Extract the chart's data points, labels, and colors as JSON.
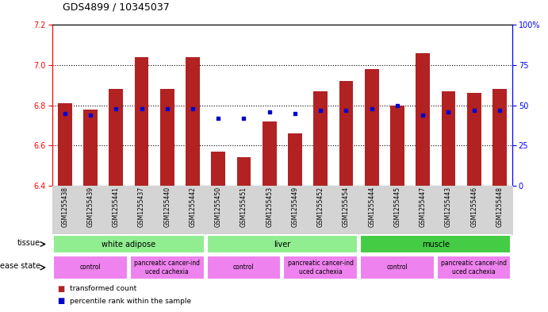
{
  "title": "GDS4899 / 10345037",
  "samples": [
    "GSM1255438",
    "GSM1255439",
    "GSM1255441",
    "GSM1255437",
    "GSM1255440",
    "GSM1255442",
    "GSM1255450",
    "GSM1255451",
    "GSM1255453",
    "GSM1255449",
    "GSM1255452",
    "GSM1255454",
    "GSM1255444",
    "GSM1255445",
    "GSM1255447",
    "GSM1255443",
    "GSM1255446",
    "GSM1255448"
  ],
  "bar_values": [
    6.81,
    6.78,
    6.88,
    7.04,
    6.88,
    7.04,
    6.57,
    6.54,
    6.72,
    6.66,
    6.87,
    6.92,
    6.98,
    6.8,
    7.06,
    6.87,
    6.86,
    6.88
  ],
  "percentile_values": [
    45,
    44,
    48,
    48,
    48,
    48,
    42,
    42,
    46,
    45,
    47,
    47,
    48,
    50,
    44,
    46,
    47,
    47
  ],
  "ylim": [
    6.4,
    7.2
  ],
  "yticks_left": [
    6.4,
    6.6,
    6.8,
    7.0,
    7.2
  ],
  "yticks_right": [
    0,
    25,
    50,
    75,
    100
  ],
  "bar_color": "#B22222",
  "dot_color": "#0000CD",
  "tissue_groups": [
    {
      "label": "white adipose",
      "start": 0,
      "end": 6,
      "color": "#90EE90"
    },
    {
      "label": "liver",
      "start": 6,
      "end": 12,
      "color": "#90EE90"
    },
    {
      "label": "muscle",
      "start": 12,
      "end": 18,
      "color": "#44CC44"
    }
  ],
  "disease_groups": [
    {
      "label": "control",
      "start": 0,
      "end": 3,
      "color": "#EE82EE"
    },
    {
      "label": "pancreatic cancer-ind\nuced cachexia",
      "start": 3,
      "end": 6,
      "color": "#EE82EE"
    },
    {
      "label": "control",
      "start": 6,
      "end": 9,
      "color": "#EE82EE"
    },
    {
      "label": "pancreatic cancer-ind\nuced cachexia",
      "start": 9,
      "end": 12,
      "color": "#EE82EE"
    },
    {
      "label": "control",
      "start": 12,
      "end": 15,
      "color": "#EE82EE"
    },
    {
      "label": "pancreatic cancer-ind\nuced cachexia",
      "start": 15,
      "end": 18,
      "color": "#EE82EE"
    }
  ]
}
